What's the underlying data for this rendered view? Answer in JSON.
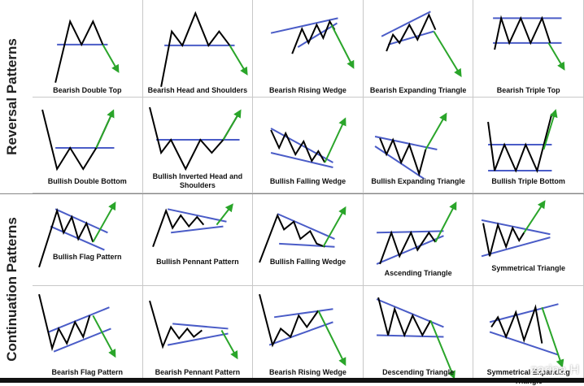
{
  "sections": [
    {
      "title": "Reversal Patterns"
    },
    {
      "title": "Continuation Patterns"
    }
  ],
  "colors": {
    "line": "#000000",
    "trend": "#4a5cc7",
    "arrow": "#2aa52a"
  },
  "cells": [
    {
      "label": "Bearish Double Top",
      "pattern": "double-top"
    },
    {
      "label": "Bearish Head and Shoulders",
      "pattern": "head-shoulders"
    },
    {
      "label": "Bearish Rising Wedge",
      "pattern": "rising-wedge"
    },
    {
      "label": "Bearish Expanding Triangle",
      "pattern": "expanding-top"
    },
    {
      "label": "Bearish Triple Top",
      "pattern": "triple-top"
    },
    {
      "label": "Bullish Double Bottom",
      "pattern": "double-bottom"
    },
    {
      "label": "Bullish Inverted Head and Shoulders",
      "pattern": "inv-head-shoulders"
    },
    {
      "label": "Bullish Falling Wedge",
      "pattern": "falling-wedge"
    },
    {
      "label": "Bullish Expanding Triangle",
      "pattern": "expanding-bottom"
    },
    {
      "label": "Bullish Triple Bottom",
      "pattern": "triple-bottom"
    },
    {
      "label": "Bullish Flag Pattern",
      "pattern": "bull-flag"
    },
    {
      "label": "Bullish Pennant Pattern",
      "pattern": "bull-pennant"
    },
    {
      "label": "Bullish Falling Wedge",
      "pattern": "falling-wedge-cont"
    },
    {
      "label": "Ascending Triangle",
      "pattern": "ascending-triangle"
    },
    {
      "label": "Symmetrical Triangle",
      "pattern": "symmetrical-triangle"
    },
    {
      "label": "Bearish Flag Pattern",
      "pattern": "bear-flag"
    },
    {
      "label": "Bearish Pennant Pattern",
      "pattern": "bear-pennant"
    },
    {
      "label": "Bearish Rising Wedge",
      "pattern": "rising-wedge-cont"
    },
    {
      "label": "Descending Triangle",
      "pattern": "descending-triangle"
    },
    {
      "label": "Symmetrical Expanding Triangle",
      "pattern": "sym-expanding"
    }
  ],
  "watermark": "zarina H"
}
